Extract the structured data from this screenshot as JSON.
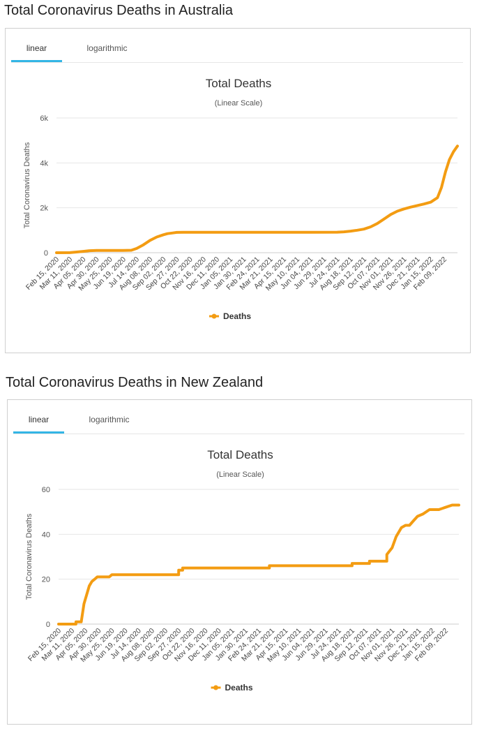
{
  "charts": [
    {
      "heading": "Total Coronavirus Deaths in Australia",
      "tabs": [
        {
          "label": "linear"
        },
        {
          "label": "logarithmic"
        }
      ],
      "active_tab": 0,
      "series_color": "#f39c12",
      "chart_data": {
        "type": "line",
        "title": "Total Deaths",
        "subtitle": "(Linear Scale)",
        "ylabel": "Total Coronavirus Deaths",
        "xlabel": "",
        "ylim": [
          0,
          6000
        ],
        "yticks": [
          0,
          2000,
          4000,
          6000
        ],
        "ytick_labels": [
          "0",
          "2k",
          "4k",
          "6k"
        ],
        "grid": true,
        "legend": "bottom-center",
        "categories": [
          "Feb 15, 2020",
          "Mar 11, 2020",
          "Apr 05, 2020",
          "Apr 30, 2020",
          "May 25, 2020",
          "Jun 19, 2020",
          "Jul 14, 2020",
          "Aug 08, 2020",
          "Sep 02, 2020",
          "Sep 27, 2020",
          "Oct 22, 2020",
          "Nov 16, 2020",
          "Dec 11, 2020",
          "Jan 05, 2021",
          "Jan 30, 2021",
          "Feb 24, 2021",
          "Mar 21, 2021",
          "Apr 15, 2021",
          "May 10, 2021",
          "Jun 04, 2021",
          "Jun 29, 2021",
          "Jul 24, 2021",
          "Aug 18, 2021",
          "Sep 12, 2021",
          "Oct 07, 2021",
          "Nov 01, 2021",
          "Nov 26, 2021",
          "Dec 21, 2021",
          "Jan 15, 2022",
          "Feb 09, 2022"
        ],
        "x_end_index": 30,
        "series": [
          {
            "name": "Deaths",
            "x": [
              0,
              1,
              1.5,
              2,
              2.5,
              3,
              4,
              5,
              5.6,
              6,
              6.5,
              7,
              7.5,
              8,
              8.3,
              8.7,
              9,
              9.5,
              10,
              11,
              13,
              15,
              17,
              19,
              21,
              21.5,
              22,
              22.5,
              23,
              23.5,
              24,
              24.5,
              25,
              25.5,
              26,
              26.5,
              27,
              27.5,
              28,
              28.5,
              28.8,
              29.1,
              29.4,
              29.7,
              30
            ],
            "y": [
              1,
              2,
              30,
              60,
              90,
              103,
              103,
              104,
              110,
              190,
              350,
              550,
              700,
              800,
              850,
              880,
              905,
              909,
              909,
              909,
              910,
              910,
              910,
              910,
              915,
              930,
              960,
              1000,
              1050,
              1150,
              1300,
              1500,
              1700,
              1850,
              1950,
              2030,
              2100,
              2170,
              2250,
              2450,
              2900,
              3600,
              4150,
              4500,
              4750
            ]
          }
        ]
      }
    },
    {
      "heading": "Total Coronavirus Deaths in New Zealand",
      "tabs": [
        {
          "label": "linear"
        },
        {
          "label": "logarithmic"
        }
      ],
      "active_tab": 0,
      "series_color": "#f39c12",
      "chart_data": {
        "type": "line",
        "title": "Total Deaths",
        "subtitle": "(Linear Scale)",
        "ylabel": "Total Coronavirus Deaths",
        "xlabel": "",
        "ylim": [
          0,
          60
        ],
        "yticks": [
          0,
          20,
          40,
          60
        ],
        "ytick_labels": [
          "0",
          "20",
          "40",
          "60"
        ],
        "grid": true,
        "legend": "bottom-center",
        "categories": [
          "Feb 15, 2020",
          "Mar 11, 2020",
          "Apr 05, 2020",
          "Apr 30, 2020",
          "May 25, 2020",
          "Jun 19, 2020",
          "Jul 14, 2020",
          "Aug 08, 2020",
          "Sep 02, 2020",
          "Sep 27, 2020",
          "Oct 22, 2020",
          "Nov 16, 2020",
          "Dec 11, 2020",
          "Jan 05, 2021",
          "Jan 30, 2021",
          "Feb 24, 2021",
          "Mar 21, 2021",
          "Apr 15, 2021",
          "May 10, 2021",
          "Jun 04, 2021",
          "Jun 29, 2021",
          "Jul 24, 2021",
          "Aug 18, 2021",
          "Sep 12, 2021",
          "Oct 07, 2021",
          "Nov 01, 2021",
          "Nov 26, 2021",
          "Dec 21, 2021",
          "Jan 15, 2022",
          "Feb 09, 2022"
        ],
        "x_end_index": 30,
        "series": [
          {
            "name": "Deaths",
            "x": [
              0,
              1,
              1.3,
              1.3,
              1.7,
              1.9,
              2.0,
              2.1,
              2.3,
              2.5,
              2.7,
              2.9,
              3.1,
              3.5,
              3.8,
              4.0,
              4.5,
              5,
              6,
              7,
              8,
              9.0,
              9.0,
              9.3,
              9.3,
              10,
              12,
              14,
              15.8,
              15.8,
              17,
              19,
              21,
              22.0,
              22.0,
              23,
              23.3,
              23.3,
              24,
              24.6,
              24.6,
              25.0,
              25.3,
              25.5,
              25.7,
              26.0,
              26.3,
              26.6,
              26.9,
              27.3,
              27.8,
              28.5,
              29.0,
              29.5,
              30
            ],
            "y": [
              0,
              0,
              0,
              1,
              1,
              9,
              11,
              13,
              17,
              19,
              20,
              21,
              21,
              21,
              21,
              22,
              22,
              22,
              22,
              22,
              22,
              22,
              24,
              24,
              25,
              25,
              25,
              25,
              25,
              26,
              26,
              26,
              26,
              26,
              27,
              27,
              27,
              28,
              28,
              28,
              31,
              34,
              39,
              41,
              43,
              44,
              44,
              46,
              48,
              49,
              51,
              51,
              52,
              53,
              53
            ]
          }
        ]
      }
    }
  ]
}
